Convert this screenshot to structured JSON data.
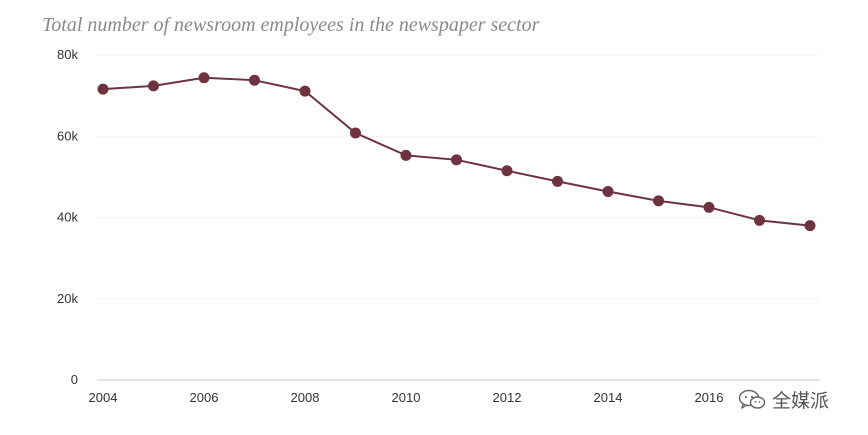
{
  "chart_data": {
    "type": "line",
    "title": "Total number of newsroom employees in the newspaper sector",
    "xlabel": "",
    "ylabel": "",
    "x": [
      2004,
      2005,
      2006,
      2007,
      2008,
      2009,
      2010,
      2011,
      2012,
      2013,
      2014,
      2015,
      2016,
      2017,
      2018
    ],
    "series": [
      {
        "values": [
          71600,
          72400,
          74400,
          73800,
          71100,
          60800,
          55300,
          54200,
          51500,
          48900,
          46400,
          44100,
          42500,
          39300,
          38000
        ]
      }
    ],
    "xlim": [
      2004,
      2018
    ],
    "ylim": [
      0,
      80000
    ],
    "x_ticks": [
      {
        "value": 2004,
        "label": "2004"
      },
      {
        "value": 2006,
        "label": "2006"
      },
      {
        "value": 2008,
        "label": "2008"
      },
      {
        "value": 2010,
        "label": "2010"
      },
      {
        "value": 2012,
        "label": "2012"
      },
      {
        "value": 2014,
        "label": "2014"
      },
      {
        "value": 2016,
        "label": "2016"
      }
    ],
    "y_ticks": [
      {
        "value": 0,
        "label": "0"
      },
      {
        "value": 20000,
        "label": "20k"
      },
      {
        "value": 40000,
        "label": "40k"
      },
      {
        "value": 60000,
        "label": "60k"
      },
      {
        "value": 80000,
        "label": "80k"
      }
    ],
    "grid": true,
    "line_color": "#6e3241",
    "grid_color": "#dddddd"
  },
  "watermark": {
    "text": "全媒派",
    "icon": "wechat-icon"
  }
}
